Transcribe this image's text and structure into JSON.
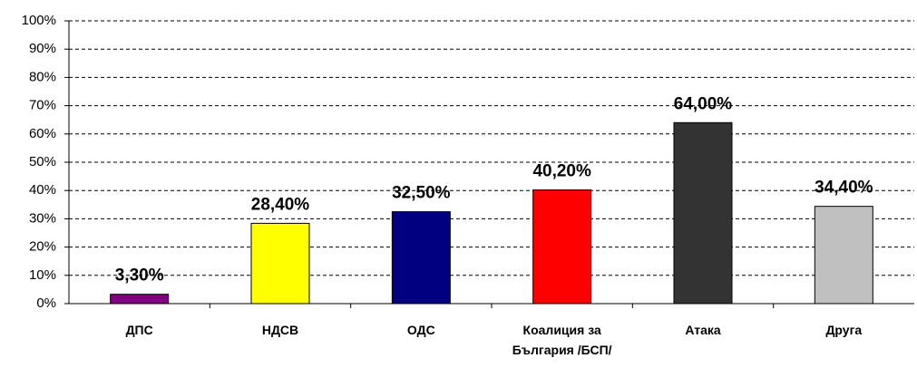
{
  "chart_data": {
    "type": "bar",
    "categories": [
      "ДПС",
      "НДСВ",
      "ОДС",
      "Коалиция за България /БСП/",
      "Атака",
      "Друга"
    ],
    "values": [
      3.3,
      28.4,
      32.5,
      40.2,
      64.0,
      34.4
    ],
    "value_labels": [
      "3,30%",
      "28,40%",
      "32,50%",
      "40,20%",
      "64,00%",
      "34,40%"
    ],
    "colors": [
      "#800080",
      "#ffff00",
      "#000080",
      "#ff0000",
      "#333333",
      "#c0c0c0"
    ],
    "ylim": [
      0,
      100
    ],
    "yticks": [
      {
        "value": 0,
        "label": "0%"
      },
      {
        "value": 10,
        "label": "10%"
      },
      {
        "value": 20,
        "label": "20%"
      },
      {
        "value": 30,
        "label": "30%"
      },
      {
        "value": 40,
        "label": "40%"
      },
      {
        "value": 50,
        "label": "50%"
      },
      {
        "value": 60,
        "label": "60%"
      },
      {
        "value": 70,
        "label": "70%"
      },
      {
        "value": 80,
        "label": "80%"
      },
      {
        "value": 90,
        "label": "90%"
      },
      {
        "value": 100,
        "label": "100%"
      }
    ],
    "grid": true
  }
}
